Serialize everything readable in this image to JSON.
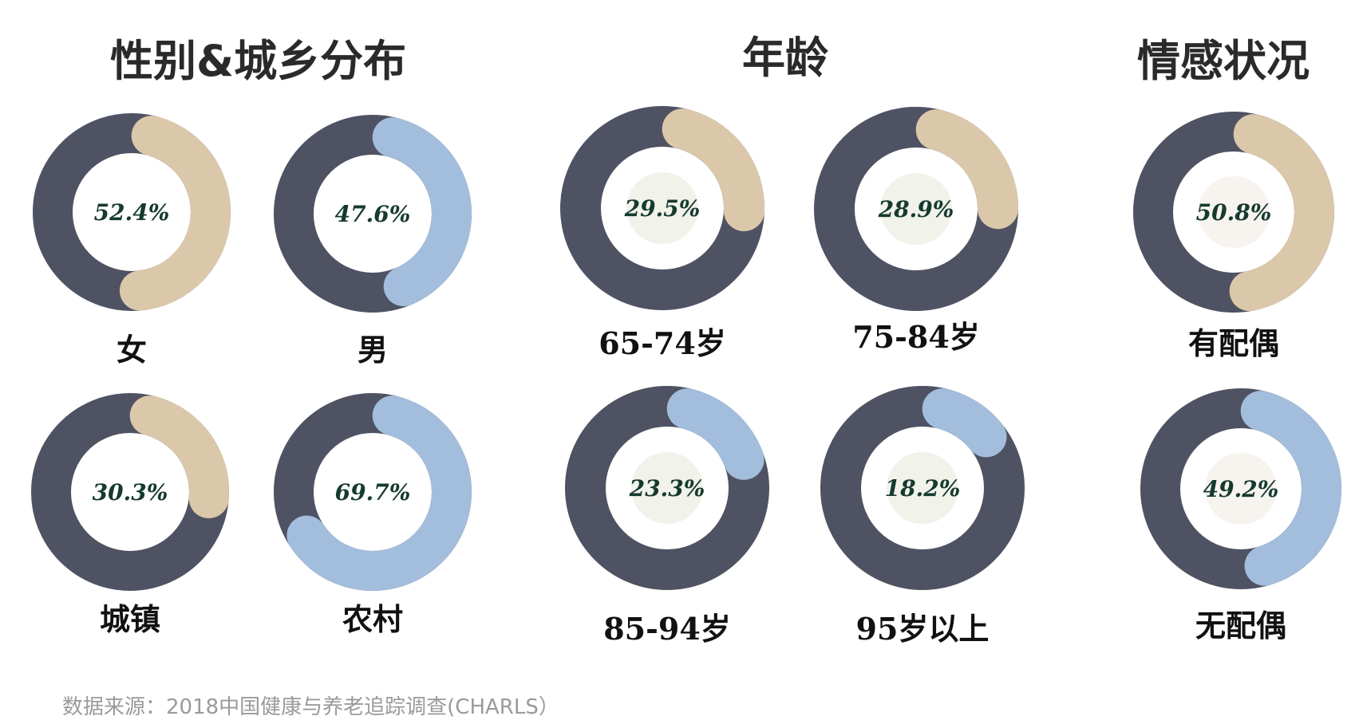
{
  "sections": {
    "gender_area": "性别&城乡分布",
    "age": "年龄",
    "marital": "情感状况"
  },
  "source": "数据来源：2018中国健康与养老追踪调查(CHARLS）",
  "colors": {
    "track": "#4f5262",
    "tan": "#dbc8aa",
    "blue": "#a3bddc",
    "label": "#163a30",
    "inner_age": "#f1f2ea",
    "inner_marital": "#f7f4f0"
  },
  "chart_data": [
    {
      "type": "pie",
      "group": "gender_area",
      "label": "女",
      "value": 52.4,
      "value_text": "52.4%",
      "color": "tan"
    },
    {
      "type": "pie",
      "group": "gender_area",
      "label": "男",
      "value": 47.6,
      "value_text": "47.6%",
      "color": "blue"
    },
    {
      "type": "pie",
      "group": "gender_area",
      "label": "城镇",
      "value": 30.3,
      "value_text": "30.3%",
      "color": "tan"
    },
    {
      "type": "pie",
      "group": "gender_area",
      "label": "农村",
      "value": 69.7,
      "value_text": "69.7%",
      "color": "blue"
    },
    {
      "type": "pie",
      "group": "age",
      "label": "65-74岁",
      "value": 29.5,
      "value_text": "29.5%",
      "color": "tan"
    },
    {
      "type": "pie",
      "group": "age",
      "label": "75-84岁",
      "value": 28.9,
      "value_text": "28.9%",
      "color": "tan"
    },
    {
      "type": "pie",
      "group": "age",
      "label": "85-94岁",
      "value": 23.3,
      "value_text": "23.3%",
      "color": "blue"
    },
    {
      "type": "pie",
      "group": "age",
      "label": "95岁以上",
      "value": 18.2,
      "value_text": "18.2%",
      "color": "blue"
    },
    {
      "type": "pie",
      "group": "marital",
      "label": "有配偶",
      "value": 50.8,
      "value_text": "50.8%",
      "color": "tan"
    },
    {
      "type": "pie",
      "group": "marital",
      "label": "无配偶",
      "value": 49.2,
      "value_text": "49.2%",
      "color": "blue"
    }
  ]
}
